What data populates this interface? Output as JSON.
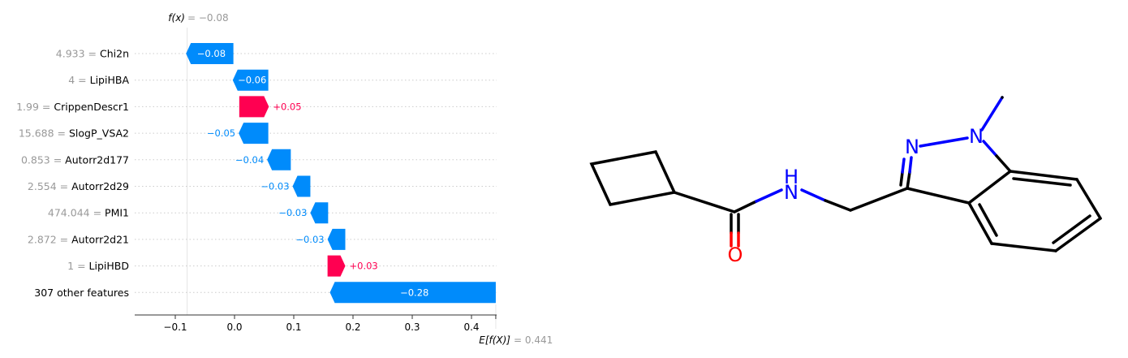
{
  "chart_data": {
    "type": "waterfall",
    "fx_label": "f(x)",
    "fx_value": "= −0.08",
    "base_label": "E[f(X)]",
    "base_value": "= 0.441",
    "base_value_num": 0.441,
    "fx_num": -0.08,
    "features": [
      {
        "value": "4.933",
        "name": "Chi2n",
        "contribution": -0.08,
        "label": "−0.08",
        "start": -0.0019
      },
      {
        "value": "4",
        "name": "LipiHBA",
        "contribution": -0.06,
        "label": "−0.06",
        "start": 0.057
      },
      {
        "value": "1.99",
        "name": "CrippenDescr1",
        "contribution": 0.05,
        "label": "+0.05",
        "start": 0.008
      },
      {
        "value": "15.688",
        "name": "SlogP_VSA2",
        "contribution": -0.05,
        "label": "−0.05",
        "start": 0.057
      },
      {
        "value": "0.853",
        "name": "Autorr2d177",
        "contribution": -0.04,
        "label": "−0.04",
        "start": 0.095
      },
      {
        "value": "2.554",
        "name": "Autorr2d29",
        "contribution": -0.03,
        "label": "−0.03",
        "start": 0.128
      },
      {
        "value": "474.044",
        "name": "PMI1",
        "contribution": -0.03,
        "label": "−0.03",
        "start": 0.158
      },
      {
        "value": "2.872",
        "name": "Autorr2d21",
        "contribution": -0.03,
        "label": "−0.03",
        "start": 0.187
      },
      {
        "value": "1",
        "name": "LipiHBD",
        "contribution": 0.03,
        "label": "+0.03",
        "start": 0.157
      },
      {
        "value": "",
        "name": "307 other features",
        "contribution": -0.28,
        "label": "−0.28",
        "start": 0.441
      }
    ],
    "xticks": [
      {
        "v": -0.1,
        "label": "−0.1"
      },
      {
        "v": 0.0,
        "label": "0.0"
      },
      {
        "v": 0.1,
        "label": "0.1"
      },
      {
        "v": 0.2,
        "label": "0.2"
      },
      {
        "v": 0.3,
        "label": "0.3"
      },
      {
        "v": 0.4,
        "label": "0.4"
      }
    ],
    "xlim": [
      -0.17,
      0.44
    ],
    "colors": {
      "negative": "#008bfb",
      "positive": "#ff0051",
      "neutral": "#999999"
    }
  },
  "molecule": {
    "atom_labels": {
      "N1": "N",
      "N2": "N",
      "NH": "H",
      "NH_N": "N",
      "O": "O"
    },
    "colors": {
      "bond": "#000000",
      "nitrogen": "#0000ff",
      "oxygen": "#ff0000"
    }
  }
}
